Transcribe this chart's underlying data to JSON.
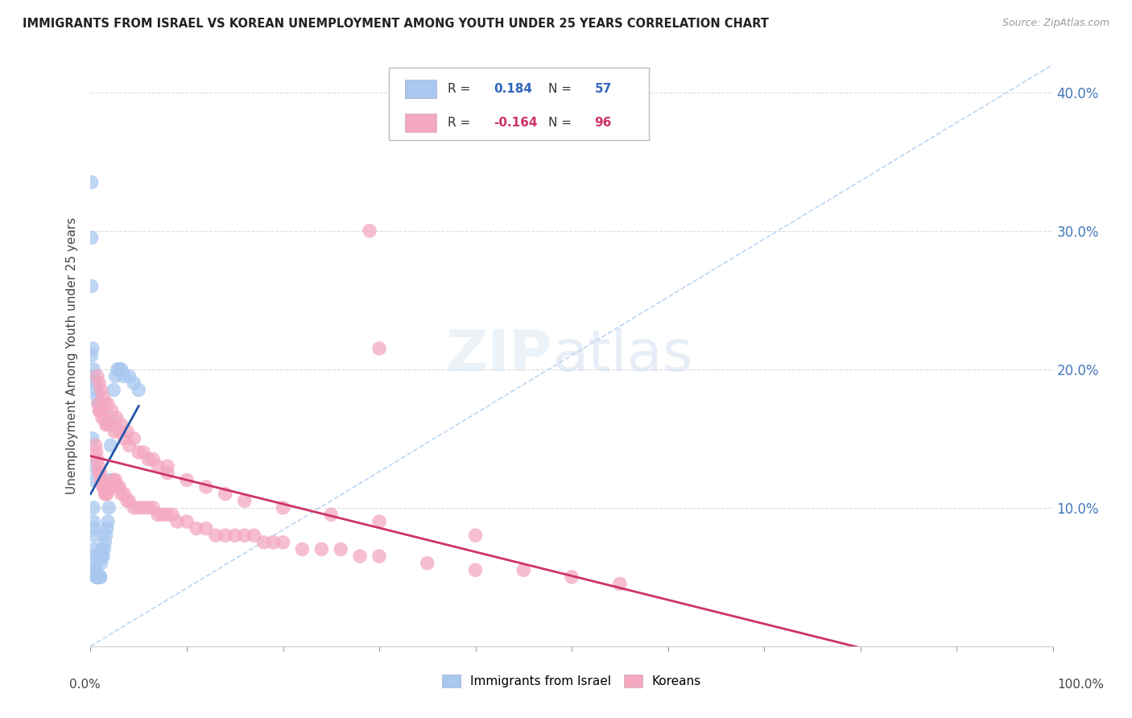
{
  "title": "IMMIGRANTS FROM ISRAEL VS KOREAN UNEMPLOYMENT AMONG YOUTH UNDER 25 YEARS CORRELATION CHART",
  "source": "Source: ZipAtlas.com",
  "ylabel": "Unemployment Among Youth under 25 years",
  "legend_label1": "Immigrants from Israel",
  "legend_label2": "Koreans",
  "R1": 0.184,
  "N1": 57,
  "R2": -0.164,
  "N2": 96,
  "blue_color": "#A8C8F0",
  "pink_color": "#F4A8C0",
  "blue_line_color": "#2255AA",
  "pink_line_color": "#CC3366",
  "dash_line_color": "#AACCEE",
  "background_color": "#FFFFFF",
  "xlim": [
    0.0,
    1.0
  ],
  "ylim": [
    0.0,
    0.42
  ],
  "ytick_vals": [
    0.1,
    0.2,
    0.3,
    0.4
  ],
  "israel_x": [
    0.001,
    0.001,
    0.001,
    0.002,
    0.002,
    0.003,
    0.003,
    0.003,
    0.004,
    0.004,
    0.004,
    0.005,
    0.005,
    0.005,
    0.006,
    0.006,
    0.006,
    0.007,
    0.007,
    0.008,
    0.008,
    0.009,
    0.009,
    0.01,
    0.01,
    0.01,
    0.011,
    0.012,
    0.012,
    0.013,
    0.014,
    0.015,
    0.016,
    0.017,
    0.018,
    0.019,
    0.02,
    0.021,
    0.022,
    0.024,
    0.026,
    0.028,
    0.03,
    0.032,
    0.035,
    0.04,
    0.045,
    0.05,
    0.001,
    0.002,
    0.003,
    0.004,
    0.005,
    0.006,
    0.007,
    0.008,
    0.009
  ],
  "israel_y": [
    0.335,
    0.295,
    0.26,
    0.15,
    0.13,
    0.12,
    0.1,
    0.09,
    0.085,
    0.08,
    0.07,
    0.065,
    0.06,
    0.055,
    0.055,
    0.05,
    0.05,
    0.05,
    0.05,
    0.05,
    0.05,
    0.05,
    0.05,
    0.05,
    0.05,
    0.05,
    0.06,
    0.065,
    0.07,
    0.065,
    0.07,
    0.075,
    0.08,
    0.085,
    0.09,
    0.1,
    0.12,
    0.145,
    0.165,
    0.185,
    0.195,
    0.2,
    0.2,
    0.2,
    0.195,
    0.195,
    0.19,
    0.185,
    0.21,
    0.215,
    0.2,
    0.195,
    0.19,
    0.185,
    0.18,
    0.175,
    0.175
  ],
  "korean_x": [
    0.005,
    0.006,
    0.007,
    0.008,
    0.009,
    0.01,
    0.011,
    0.012,
    0.013,
    0.014,
    0.015,
    0.016,
    0.017,
    0.018,
    0.02,
    0.022,
    0.024,
    0.026,
    0.028,
    0.03,
    0.032,
    0.035,
    0.038,
    0.04,
    0.045,
    0.05,
    0.055,
    0.06,
    0.065,
    0.07,
    0.075,
    0.08,
    0.085,
    0.09,
    0.1,
    0.11,
    0.12,
    0.13,
    0.14,
    0.15,
    0.16,
    0.17,
    0.18,
    0.19,
    0.2,
    0.22,
    0.24,
    0.26,
    0.28,
    0.3,
    0.35,
    0.4,
    0.45,
    0.5,
    0.55,
    0.008,
    0.009,
    0.01,
    0.012,
    0.014,
    0.016,
    0.018,
    0.02,
    0.025,
    0.03,
    0.035,
    0.04,
    0.05,
    0.06,
    0.07,
    0.08,
    0.1,
    0.12,
    0.14,
    0.16,
    0.2,
    0.25,
    0.3,
    0.4,
    0.007,
    0.009,
    0.011,
    0.013,
    0.015,
    0.018,
    0.022,
    0.027,
    0.032,
    0.038,
    0.045,
    0.055,
    0.065,
    0.08,
    0.3,
    0.29
  ],
  "korean_y": [
    0.145,
    0.14,
    0.135,
    0.13,
    0.125,
    0.125,
    0.12,
    0.12,
    0.115,
    0.115,
    0.11,
    0.11,
    0.11,
    0.115,
    0.115,
    0.115,
    0.12,
    0.12,
    0.115,
    0.115,
    0.11,
    0.11,
    0.105,
    0.105,
    0.1,
    0.1,
    0.1,
    0.1,
    0.1,
    0.095,
    0.095,
    0.095,
    0.095,
    0.09,
    0.09,
    0.085,
    0.085,
    0.08,
    0.08,
    0.08,
    0.08,
    0.08,
    0.075,
    0.075,
    0.075,
    0.07,
    0.07,
    0.07,
    0.065,
    0.065,
    0.06,
    0.055,
    0.055,
    0.05,
    0.045,
    0.175,
    0.17,
    0.17,
    0.165,
    0.165,
    0.16,
    0.16,
    0.16,
    0.155,
    0.155,
    0.15,
    0.145,
    0.14,
    0.135,
    0.13,
    0.125,
    0.12,
    0.115,
    0.11,
    0.105,
    0.1,
    0.095,
    0.09,
    0.08,
    0.195,
    0.19,
    0.185,
    0.18,
    0.175,
    0.175,
    0.17,
    0.165,
    0.16,
    0.155,
    0.15,
    0.14,
    0.135,
    0.13,
    0.215,
    0.3
  ]
}
